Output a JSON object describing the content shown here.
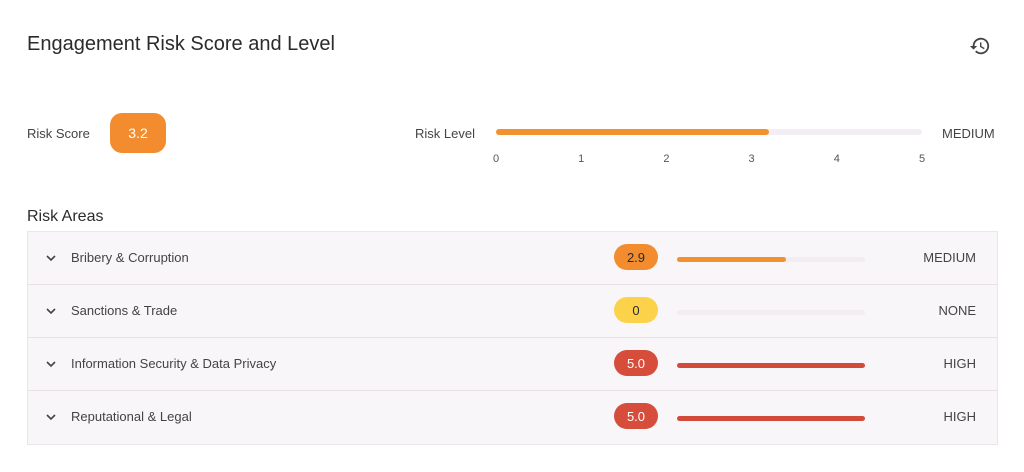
{
  "header": {
    "title": "Engagement Risk Score and Level",
    "history_icon": "history-icon"
  },
  "summary": {
    "score_label": "Risk Score",
    "score_value": "3.2",
    "score_color": "#f28c2e",
    "level_label": "Risk Level",
    "level_word": "MEDIUM",
    "level_fraction": 0.64,
    "ticks": [
      "0",
      "1",
      "2",
      "3",
      "4",
      "5"
    ]
  },
  "areas": {
    "title": "Risk Areas",
    "rows": [
      {
        "name": "Bribery & Corruption",
        "score": "2.9",
        "level": "MEDIUM",
        "fraction": 0.58,
        "badge_color": "#f28c2e",
        "badge_text_color": "#2b2b2b",
        "bar_color": "#f2922e"
      },
      {
        "name": "Sanctions & Trade",
        "score": "0",
        "level": "NONE",
        "fraction": 0,
        "badge_color": "#fcd24a",
        "badge_text_color": "#2b2b2b",
        "bar_color": "#fcd24a"
      },
      {
        "name": "Information Security & Data Privacy",
        "score": "5.0",
        "level": "HIGH",
        "fraction": 1.0,
        "badge_color": "#d64d3c",
        "badge_text_color": "#ffffff",
        "bar_color": "#d24b3a"
      },
      {
        "name": "Reputational & Legal",
        "score": "5.0",
        "level": "HIGH",
        "fraction": 1.0,
        "badge_color": "#d64d3c",
        "badge_text_color": "#ffffff",
        "bar_color": "#d24b3a"
      }
    ]
  }
}
